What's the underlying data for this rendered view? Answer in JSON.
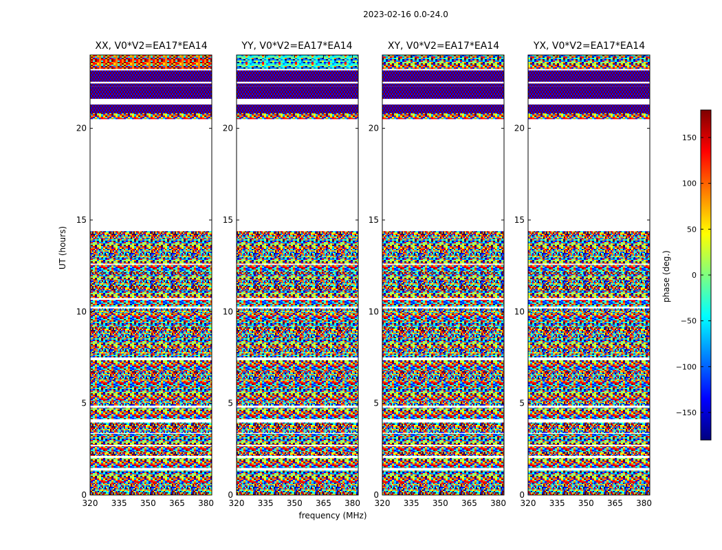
{
  "figure": {
    "suptitle": "2023-02-16 0.0-24.0",
    "ylabel": "UT (hours)",
    "xlabel": "frequency (MHz)",
    "colorbar_label": "phase (deg.)",
    "colorbar_ticks": [
      "150",
      "100",
      "50",
      "0",
      "−50",
      "−100",
      "−150"
    ],
    "colorbar_range": [
      -180,
      180
    ],
    "colormap": [
      "#00007f",
      "#0000ff",
      "#007fff",
      "#00ffff",
      "#7fff7f",
      "#ffff00",
      "#ff7f00",
      "#ff0000",
      "#7f0000"
    ]
  },
  "chart_data": [
    {
      "type": "heatmap",
      "title": "XX, V0*V2=EA17*EA14",
      "xlabel": "frequency (MHz)",
      "ylabel": "UT (hours)",
      "xlim": [
        320,
        383
      ],
      "ylim": [
        0,
        24
      ],
      "xticks": [
        "320",
        "335",
        "350",
        "365",
        "380"
      ],
      "yticks": [
        "0",
        "5",
        "10",
        "15",
        "20"
      ],
      "value": "phase (deg.)",
      "data_gaps_hours": [
        [
          14.0,
          20.5
        ],
        [
          22.6,
          22.7
        ],
        [
          3.7,
          3.9
        ]
      ]
    },
    {
      "type": "heatmap",
      "title": "YY, V0*V2=EA17*EA14",
      "xlabel": "frequency (MHz)",
      "ylabel": "UT (hours)",
      "xlim": [
        320,
        383
      ],
      "ylim": [
        0,
        24
      ],
      "xticks": [
        "320",
        "335",
        "350",
        "365",
        "380"
      ],
      "yticks": [
        "0",
        "5",
        "10",
        "15",
        "20"
      ],
      "value": "phase (deg.)",
      "data_gaps_hours": [
        [
          14.0,
          20.5
        ],
        [
          22.6,
          22.7
        ],
        [
          3.7,
          3.9
        ]
      ]
    },
    {
      "type": "heatmap",
      "title": "XY, V0*V2=EA17*EA14",
      "xlabel": "frequency (MHz)",
      "ylabel": "UT (hours)",
      "xlim": [
        320,
        383
      ],
      "ylim": [
        0,
        24
      ],
      "xticks": [
        "320",
        "335",
        "350",
        "365",
        "380"
      ],
      "yticks": [
        "0",
        "5",
        "10",
        "15",
        "20"
      ],
      "value": "phase (deg.)",
      "data_gaps_hours": [
        [
          14.0,
          20.5
        ],
        [
          22.6,
          22.7
        ],
        [
          3.7,
          3.9
        ]
      ]
    },
    {
      "type": "heatmap",
      "title": "YX, V0*V2=EA17*EA14",
      "xlabel": "frequency (MHz)",
      "ylabel": "UT (hours)",
      "xlim": [
        320,
        383
      ],
      "ylim": [
        0,
        24
      ],
      "xticks": [
        "320",
        "335",
        "350",
        "365",
        "380"
      ],
      "yticks": [
        "0",
        "5",
        "10",
        "15",
        "20"
      ],
      "value": "phase (deg.)",
      "data_gaps_hours": [
        [
          14.0,
          20.5
        ],
        [
          22.6,
          22.7
        ],
        [
          3.7,
          3.9
        ]
      ]
    }
  ]
}
